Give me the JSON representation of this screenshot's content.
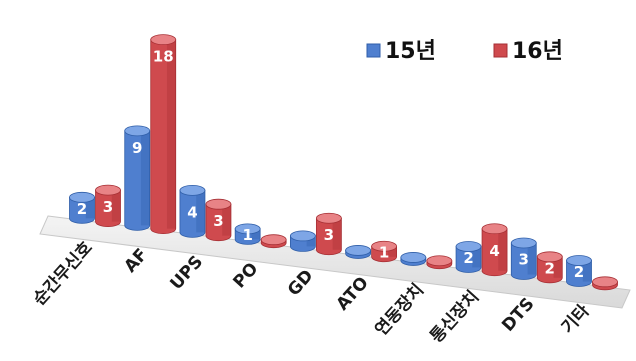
{
  "chart_data": {
    "type": "bar",
    "categories": [
      "순간무신호",
      "AF",
      "UPS",
      "PO",
      "GD",
      "ATO",
      "연동장치",
      "통신장치",
      "DTS",
      "기타"
    ],
    "series": [
      {
        "name": "15년",
        "values": [
          2,
          9,
          4,
          1,
          1,
          0,
          0,
          2,
          3,
          2
        ],
        "color": "#4f7fcf",
        "dark": "#2f5ea8",
        "top": "#7ea6e6"
      },
      {
        "name": "16년",
        "values": [
          3,
          18,
          3,
          0,
          3,
          1,
          0,
          4,
          2,
          0
        ],
        "color": "#cf4a4e",
        "dark": "#a62f34",
        "top": "#e88386"
      }
    ],
    "value_labels": [
      [
        "2",
        "9",
        "4",
        "1",
        "",
        "",
        "",
        "2",
        "3",
        "2"
      ],
      [
        "3",
        "18",
        "3",
        "",
        "3",
        "1",
        "",
        "4",
        "2",
        ""
      ]
    ],
    "legend_position": "top-right",
    "ylim": [
      0,
      18
    ],
    "grid": false
  }
}
